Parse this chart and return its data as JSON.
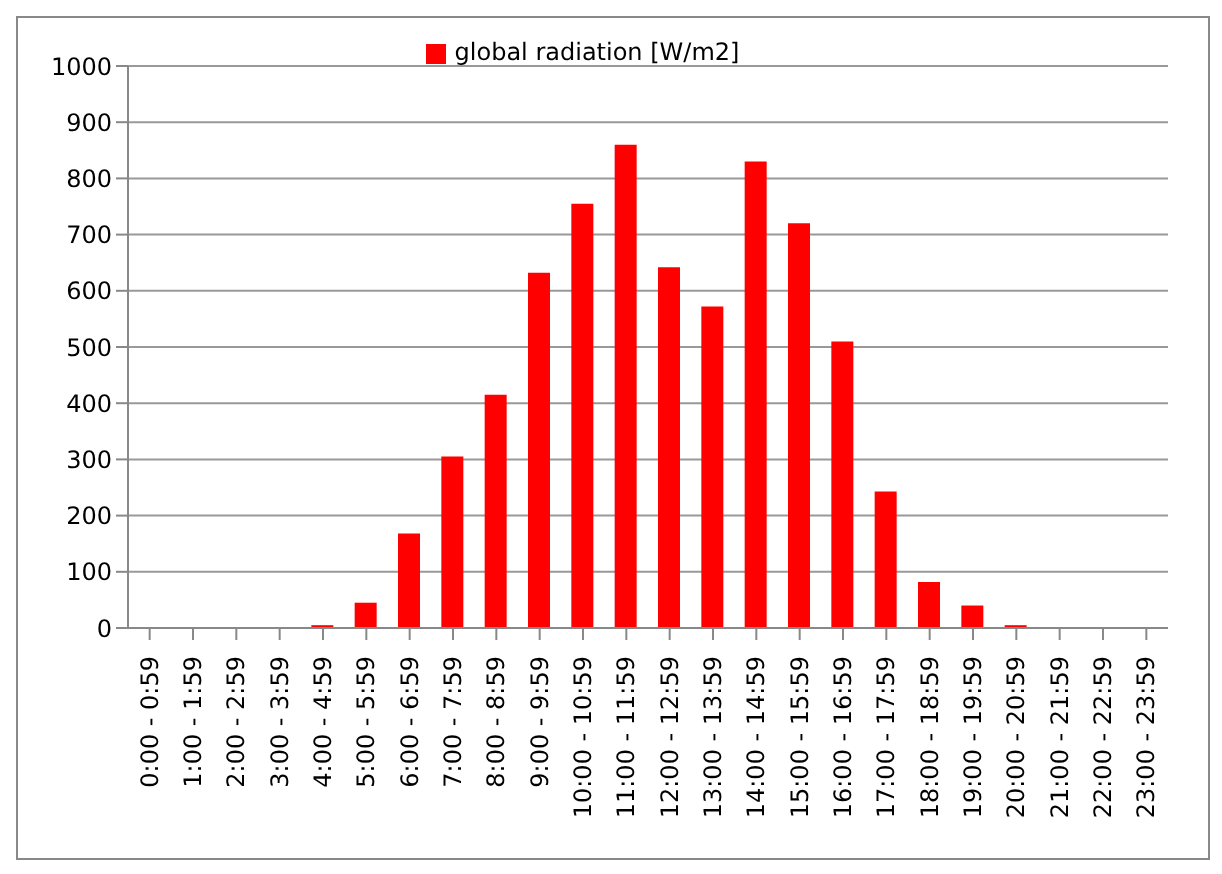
{
  "chart_data": {
    "type": "bar",
    "categories": [
      "0:00 - 0:59",
      "1:00 - 1:59",
      "2:00 - 2:59",
      "3:00 - 3:59",
      "4:00 - 4:59",
      "5:00 - 5:59",
      "6:00 - 6:59",
      "7:00 - 7:59",
      "8:00 - 8:59",
      "9:00 - 9:59",
      "10:00 - 10:59",
      "11:00 - 11:59",
      "12:00 - 12:59",
      "13:00 - 13:59",
      "14:00 - 14:59",
      "15:00 - 15:59",
      "16:00 - 16:59",
      "17:00 - 17:59",
      "18:00 - 18:59",
      "19:00 - 19:59",
      "20:00 - 20:59",
      "21:00 - 21:59",
      "22:00 - 22:59",
      "23:00 - 23:59"
    ],
    "series": [
      {
        "name": "global radiation [W/m2]",
        "color": "#ff0000",
        "values": [
          0,
          0,
          0,
          0,
          5,
          45,
          168,
          305,
          415,
          632,
          755,
          860,
          642,
          572,
          830,
          720,
          510,
          243,
          82,
          40,
          5,
          0,
          0,
          0
        ]
      }
    ],
    "ylim": [
      0,
      1000
    ],
    "yticks": [
      0,
      100,
      200,
      300,
      400,
      500,
      600,
      700,
      800,
      900,
      1000
    ],
    "grid": "y",
    "legend": "top"
  }
}
